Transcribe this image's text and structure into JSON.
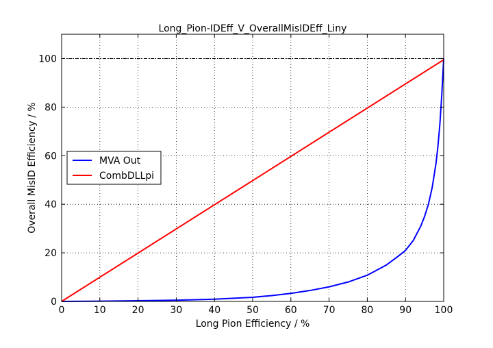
{
  "chart_data": {
    "type": "line",
    "title": "Long_Pion-IDEff_V_OverallMisIDEff_Liny",
    "xlabel": "Long Pion Efficiency / %",
    "ylabel": "Overall MisID Efficiency / %",
    "xlim": [
      0,
      100
    ],
    "ylim": [
      0,
      110
    ],
    "xticks": [
      0,
      10,
      20,
      30,
      40,
      50,
      60,
      70,
      80,
      90,
      100
    ],
    "yticks": [
      0,
      20,
      40,
      60,
      80,
      100
    ],
    "grid": true,
    "legend_position": "center-left",
    "reference_line_y": 100,
    "series": [
      {
        "name": "MVA Out",
        "color": "#0000ff",
        "x": [
          0,
          10,
          20,
          30,
          40,
          50,
          55,
          60,
          65,
          70,
          75,
          80,
          85,
          88,
          90,
          92,
          94,
          95,
          96,
          97,
          98,
          98.5,
          99,
          99.5,
          100
        ],
        "y": [
          0,
          0.1,
          0.3,
          0.5,
          0.9,
          1.7,
          2.4,
          3.3,
          4.5,
          6.0,
          8.0,
          10.8,
          15.0,
          18.5,
          21.0,
          25.0,
          31.0,
          35.0,
          40.0,
          47.0,
          57.0,
          64.0,
          73.0,
          85.0,
          100.0
        ]
      },
      {
        "name": "CombDLLpi",
        "color": "#ff0000",
        "x": [
          0,
          100
        ],
        "y": [
          0,
          99.5
        ]
      }
    ]
  }
}
